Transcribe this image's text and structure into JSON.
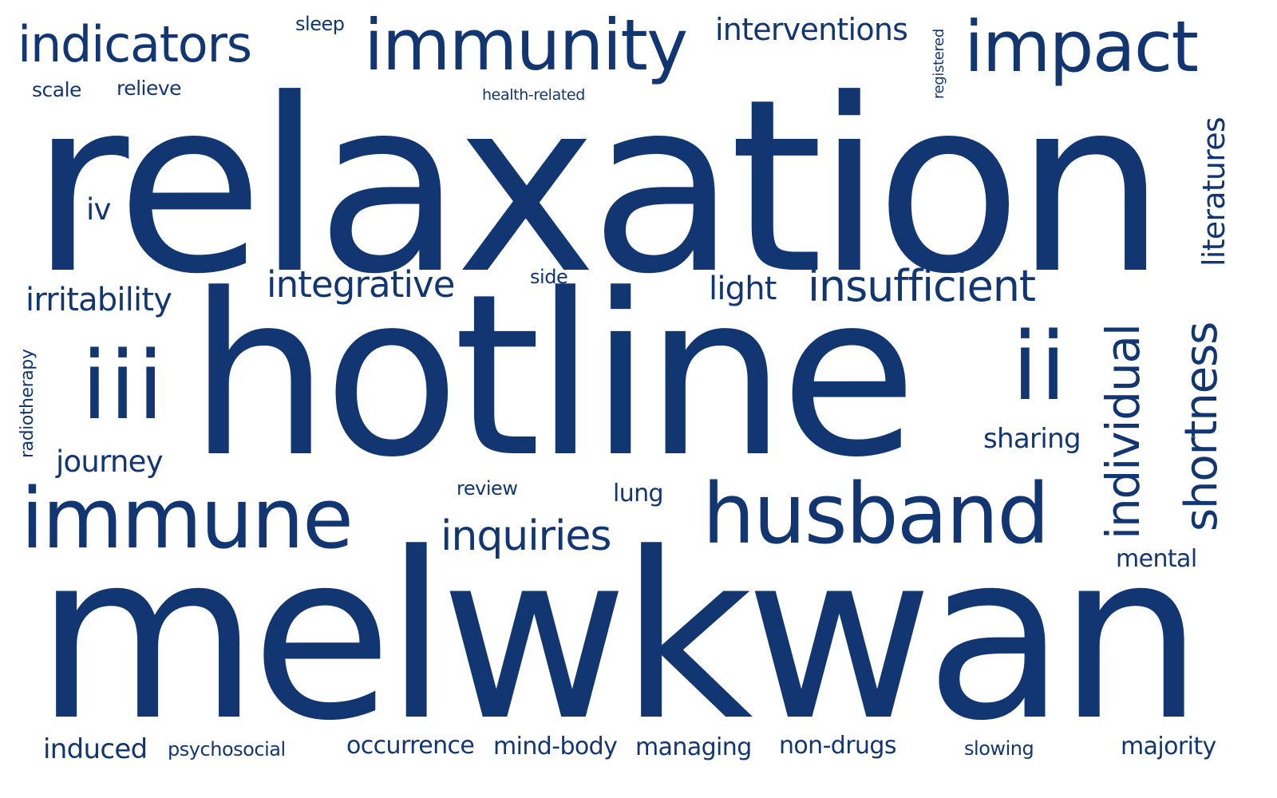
{
  "colors": {
    "word": "#123672",
    "background": "#ffffff"
  },
  "words": {
    "relaxation": "relaxation",
    "hotline": "hotline",
    "melwkwan": "melwkwan",
    "immunity": "immunity",
    "impact": "impact",
    "indicators": "indicators",
    "immune": "immune",
    "husband": "husband",
    "iii": "iii",
    "ii": "ii",
    "insufficient": "insufficient",
    "integrative": "integrative",
    "inquiries": "inquiries",
    "individual": "individual",
    "shortness": "shortness",
    "literatures": "literatures",
    "interventions": "interventions",
    "irritability": "irritability",
    "journey": "journey",
    "sharing": "sharing",
    "light": "light",
    "iv": "iv",
    "sleep": "sleep",
    "scale": "scale",
    "relieve": "relieve",
    "health_related": "health-related",
    "registered": "registered",
    "side": "side",
    "radiotherapy": "radiotherapy",
    "review": "review",
    "lung": "lung",
    "mental": "mental",
    "induced": "induced",
    "psychosocial": "psychosocial",
    "occurrence": "occurrence",
    "mind_body": "mind-body",
    "managing": "managing",
    "non_drugs": "non-drugs",
    "slowing": "slowing",
    "majority": "majority"
  }
}
